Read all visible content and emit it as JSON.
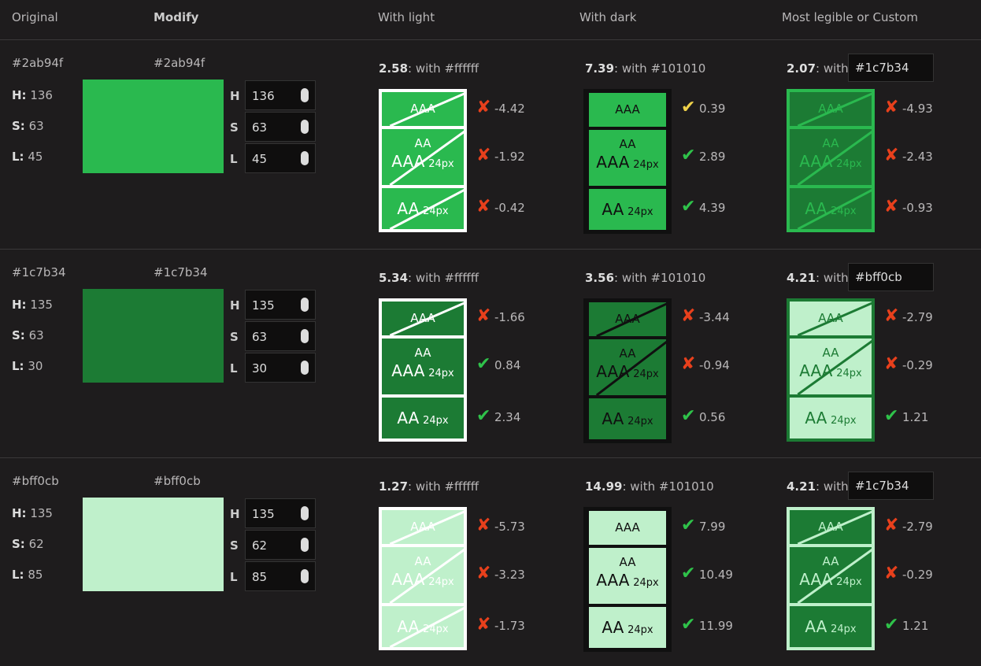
{
  "header": {
    "original": "Original",
    "modify": "Modify",
    "with_light": "With light",
    "with_dark": "With dark",
    "custom": "Most legible or Custom"
  },
  "labels": {
    "h": "H:",
    "s": "S:",
    "l": "L:",
    "h_input": "H",
    "s_input": "S",
    "l_input": "L"
  },
  "samples": {
    "aaa": "AAA",
    "aa": "AA",
    "size": "24px"
  },
  "rows": [
    {
      "hex": "#2ab94f",
      "h": 136,
      "s": 63,
      "l": 45,
      "light": {
        "ratio": 2.58,
        "with": ": with",
        "color": "#ffffff",
        "scores": [
          -4.42,
          -1.92,
          -0.42
        ]
      },
      "dark": {
        "ratio": 7.39,
        "with": ": with",
        "color": "#101010",
        "scores": [
          0.39,
          2.89,
          4.39
        ]
      },
      "custom": {
        "ratio": 2.07,
        "with": ": with",
        "color": "#1c7b34",
        "scores": [
          -4.93,
          -2.43,
          -0.93
        ]
      }
    },
    {
      "hex": "#1c7b34",
      "h": 135,
      "s": 63,
      "l": 30,
      "light": {
        "ratio": 5.34,
        "with": ": with",
        "color": "#ffffff",
        "scores": [
          -1.66,
          0.84,
          2.34
        ]
      },
      "dark": {
        "ratio": 3.56,
        "with": ": with",
        "color": "#101010",
        "scores": [
          -3.44,
          -0.94,
          0.56
        ]
      },
      "custom": {
        "ratio": 4.21,
        "with": ": with",
        "color": "#bff0cb",
        "scores": [
          -2.79,
          -0.29,
          1.21
        ]
      }
    },
    {
      "hex": "#bff0cb",
      "h": 135,
      "s": 62,
      "l": 85,
      "light": {
        "ratio": 1.27,
        "with": ": with",
        "color": "#ffffff",
        "scores": [
          -5.73,
          -3.23,
          -1.73
        ]
      },
      "dark": {
        "ratio": 14.99,
        "with": ": with",
        "color": "#101010",
        "scores": [
          7.99,
          10.49,
          11.99
        ]
      },
      "custom": {
        "ratio": 4.21,
        "with": ": with",
        "color": "#1c7b34",
        "scores": [
          -2.79,
          -0.29,
          1.21
        ]
      }
    }
  ]
}
